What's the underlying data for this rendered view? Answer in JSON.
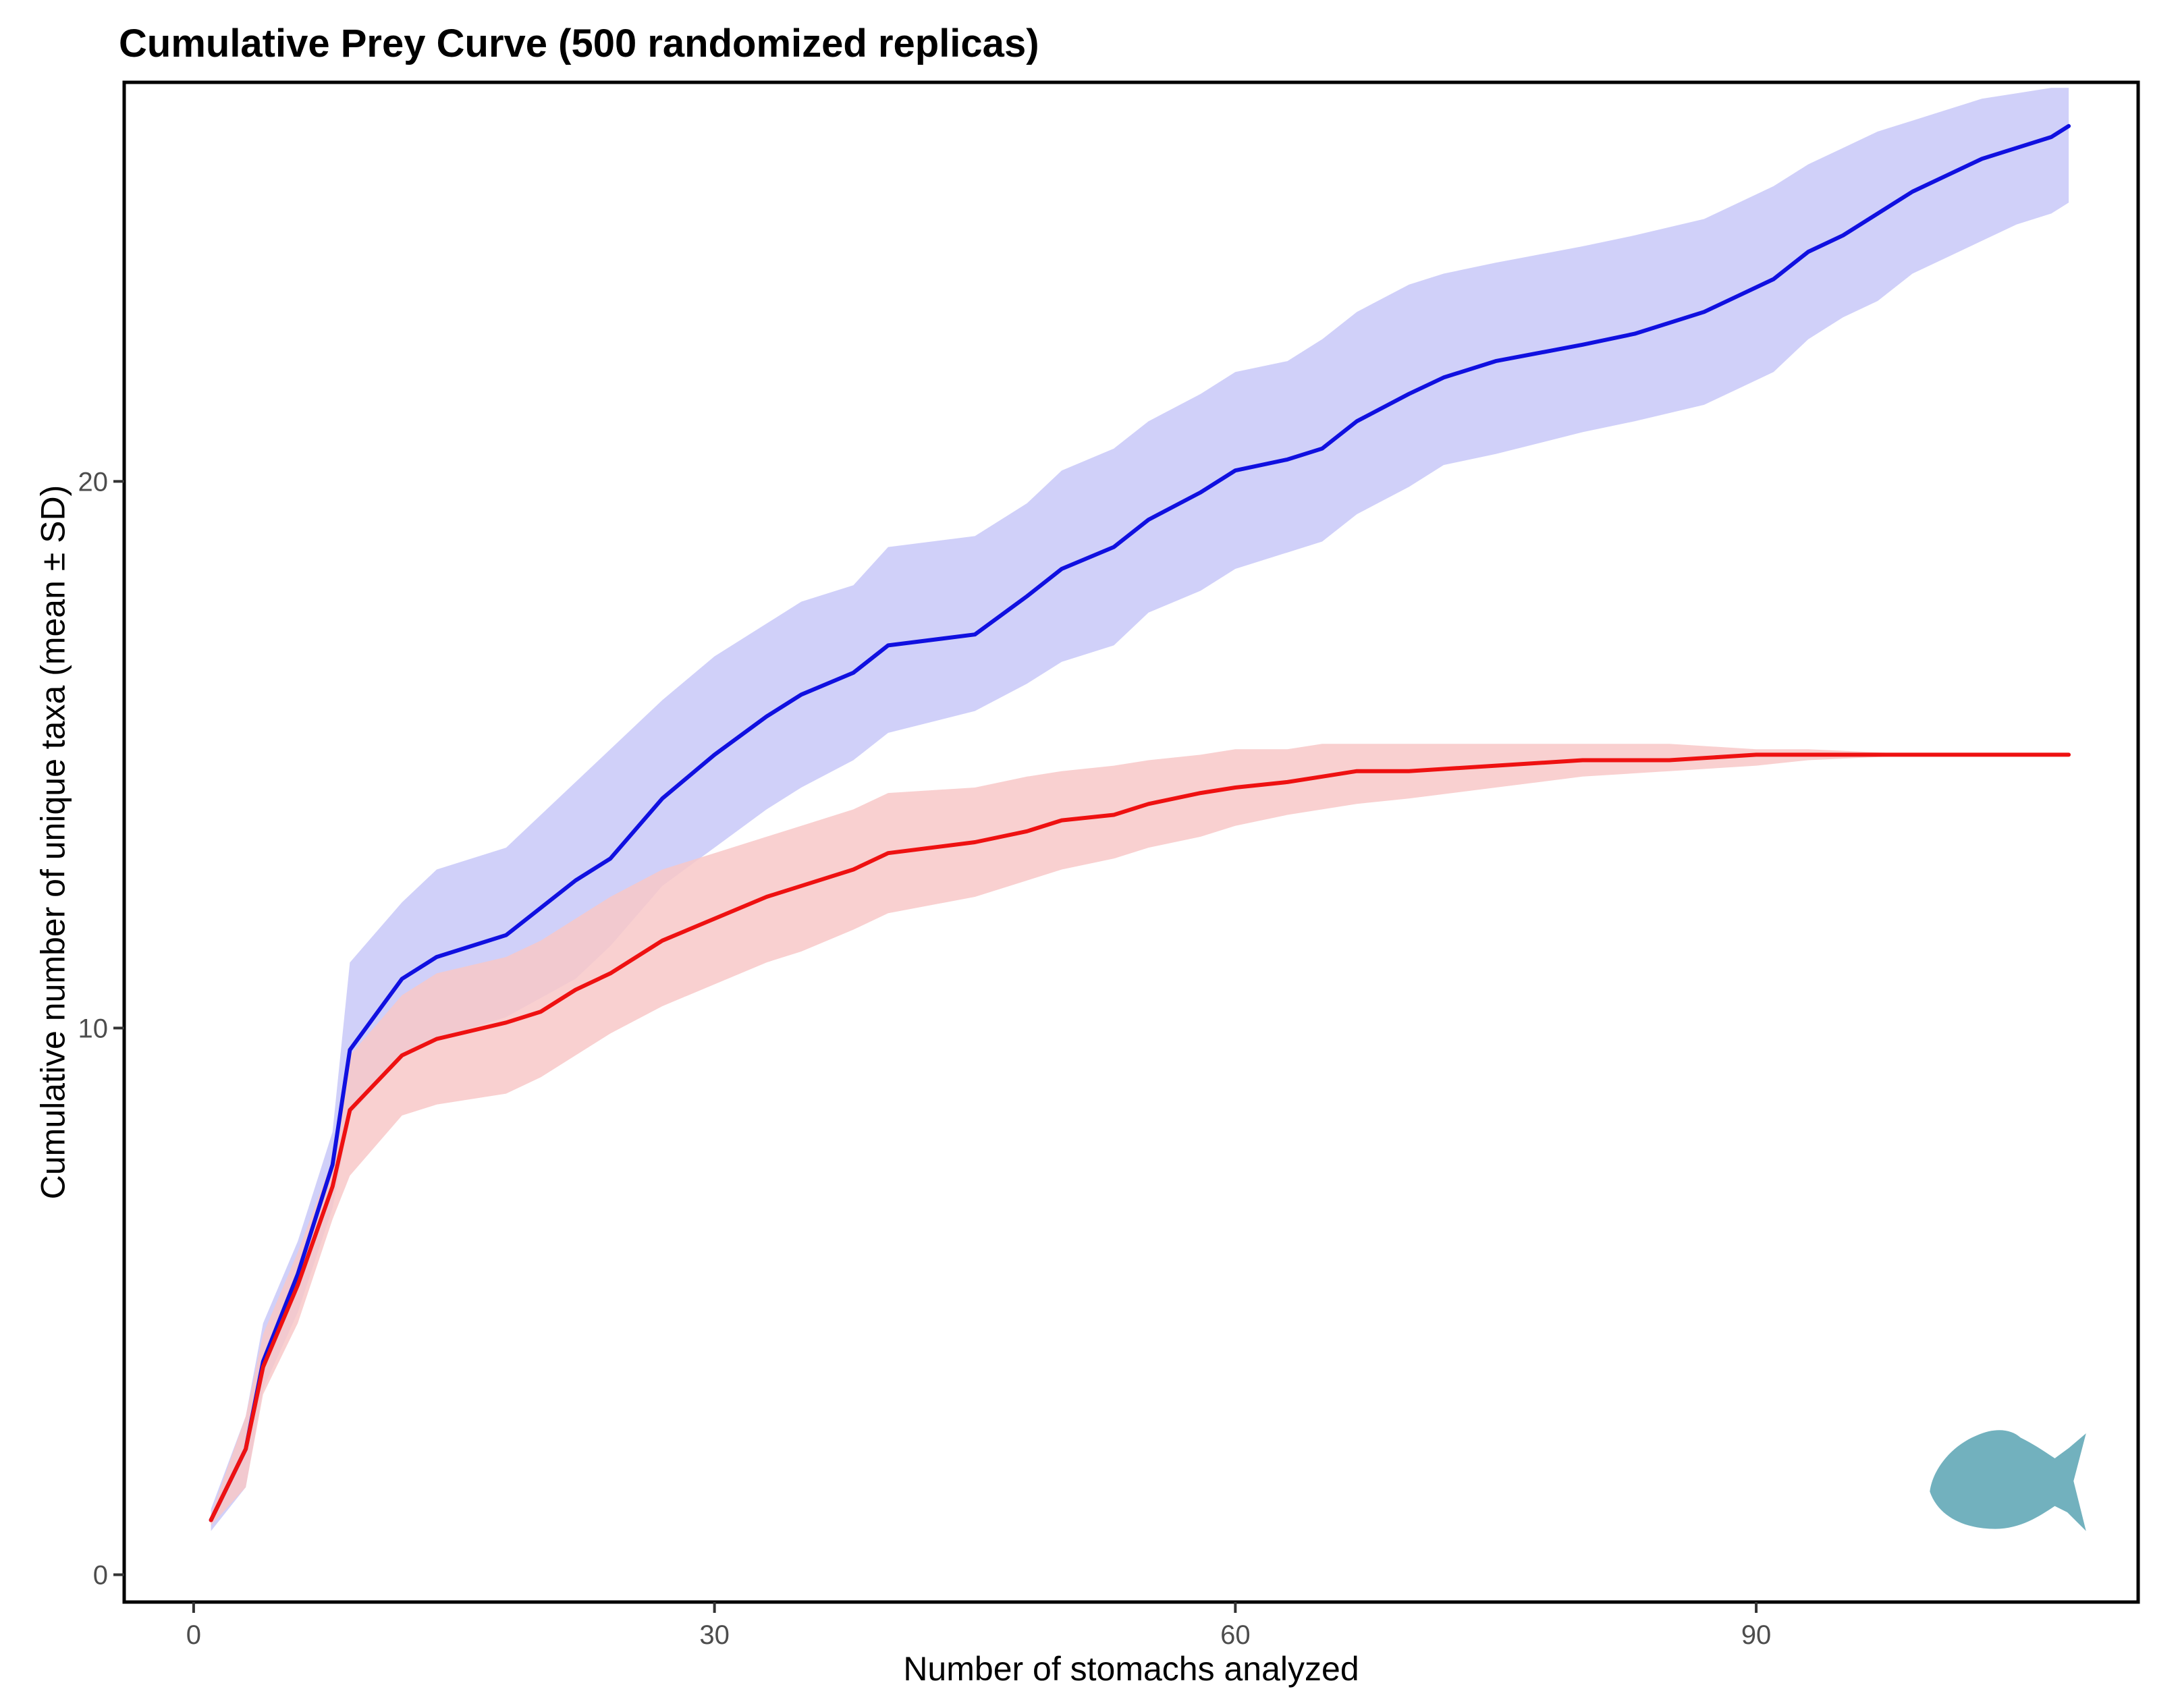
{
  "chart_data": {
    "type": "line",
    "title": "Cumulative Prey Curve (500 randomized replicas)",
    "xlabel": "Number of stomachs analyzed",
    "ylabel": "Cumulative number of unique taxa (mean ± SD)",
    "xlim": [
      -4,
      112
    ],
    "ylim": [
      -0.5,
      27.3
    ],
    "x_ticks": [
      0,
      30,
      60,
      90
    ],
    "x_tick_labels": [
      "0",
      "30",
      "60",
      "90"
    ],
    "y_ticks": [
      0,
      10,
      20
    ],
    "y_tick_labels": [
      "0",
      "10",
      "20"
    ],
    "grid": false,
    "legend": "none",
    "series": [
      {
        "name": "blue",
        "color": "#1010e0",
        "band_color": "#c8c8f8",
        "x": [
          1,
          3,
          4,
          6,
          8,
          9,
          12,
          14,
          18,
          22,
          24,
          27,
          30,
          33,
          35,
          38,
          40,
          45,
          48,
          50,
          53,
          55,
          58,
          60,
          63,
          65,
          67,
          70,
          72,
          75,
          80,
          83,
          87,
          89,
          91,
          93,
          95,
          97,
          99,
          101,
          103,
          105,
          107,
          108
        ],
        "mean": [
          1.0,
          2.3,
          3.9,
          5.5,
          7.5,
          9.6,
          10.9,
          11.3,
          11.7,
          12.7,
          13.1,
          14.2,
          15.0,
          15.7,
          16.1,
          16.5,
          17.0,
          17.2,
          17.9,
          18.4,
          18.8,
          19.3,
          19.8,
          20.2,
          20.4,
          20.6,
          21.1,
          21.6,
          21.9,
          22.2,
          22.5,
          22.7,
          23.1,
          23.4,
          23.7,
          24.2,
          24.5,
          24.9,
          25.3,
          25.6,
          25.9,
          26.1,
          26.3,
          26.5
        ],
        "lower": [
          0.8,
          1.6,
          3.4,
          4.8,
          6.7,
          8.4,
          9.5,
          9.8,
          10.2,
          10.9,
          11.5,
          12.6,
          13.3,
          14.0,
          14.4,
          14.9,
          15.4,
          15.8,
          16.3,
          16.7,
          17.0,
          17.6,
          18.0,
          18.4,
          18.7,
          18.9,
          19.4,
          19.9,
          20.3,
          20.5,
          20.9,
          21.1,
          21.4,
          21.7,
          22.0,
          22.6,
          23.0,
          23.3,
          23.8,
          24.1,
          24.4,
          24.7,
          24.9,
          25.1
        ],
        "upper": [
          1.2,
          2.9,
          4.6,
          6.1,
          8.1,
          11.2,
          12.3,
          12.9,
          13.3,
          14.5,
          15.1,
          16.0,
          16.8,
          17.4,
          17.8,
          18.1,
          18.8,
          19.0,
          19.6,
          20.2,
          20.6,
          21.1,
          21.6,
          22.0,
          22.2,
          22.6,
          23.1,
          23.6,
          23.8,
          24.0,
          24.3,
          24.5,
          24.8,
          25.1,
          25.4,
          25.8,
          26.1,
          26.4,
          26.6,
          26.8,
          27.0,
          27.1,
          27.2,
          27.2
        ]
      },
      {
        "name": "red",
        "color": "#ee1111",
        "band_color": "#f8c8c8",
        "x": [
          1,
          3,
          4,
          6,
          8,
          9,
          12,
          14,
          18,
          20,
          22,
          24,
          27,
          30,
          33,
          35,
          38,
          40,
          45,
          48,
          50,
          53,
          55,
          58,
          60,
          63,
          65,
          67,
          70,
          75,
          80,
          85,
          90,
          93,
          100,
          108
        ],
        "mean": [
          1.0,
          2.3,
          3.8,
          5.3,
          7.1,
          8.5,
          9.5,
          9.8,
          10.1,
          10.3,
          10.7,
          11.0,
          11.6,
          12.0,
          12.4,
          12.6,
          12.9,
          13.2,
          13.4,
          13.6,
          13.8,
          13.9,
          14.1,
          14.3,
          14.4,
          14.5,
          14.6,
          14.7,
          14.7,
          14.8,
          14.9,
          14.9,
          15.0,
          15.0,
          15.0,
          15.0
        ],
        "lower": [
          0.9,
          1.6,
          3.3,
          4.6,
          6.5,
          7.3,
          8.4,
          8.6,
          8.8,
          9.1,
          9.5,
          9.9,
          10.4,
          10.8,
          11.2,
          11.4,
          11.8,
          12.1,
          12.4,
          12.7,
          12.9,
          13.1,
          13.3,
          13.5,
          13.7,
          13.9,
          14.0,
          14.1,
          14.2,
          14.4,
          14.6,
          14.7,
          14.8,
          14.9,
          15.0,
          15.0
        ],
        "upper": [
          1.1,
          2.9,
          4.4,
          5.9,
          7.6,
          9.5,
          10.6,
          11.0,
          11.3,
          11.6,
          12.0,
          12.4,
          12.9,
          13.2,
          13.5,
          13.7,
          14.0,
          14.3,
          14.4,
          14.6,
          14.7,
          14.8,
          14.9,
          15.0,
          15.1,
          15.1,
          15.2,
          15.2,
          15.2,
          15.2,
          15.2,
          15.2,
          15.1,
          15.1,
          15.0,
          15.0
        ]
      }
    ],
    "annotations": [
      {
        "type": "silhouette",
        "icon": "fish-silhouette-icon",
        "color": "#72b1be",
        "x": [
          100,
          109
        ],
        "y": [
          0.8,
          2.7
        ]
      }
    ]
  }
}
